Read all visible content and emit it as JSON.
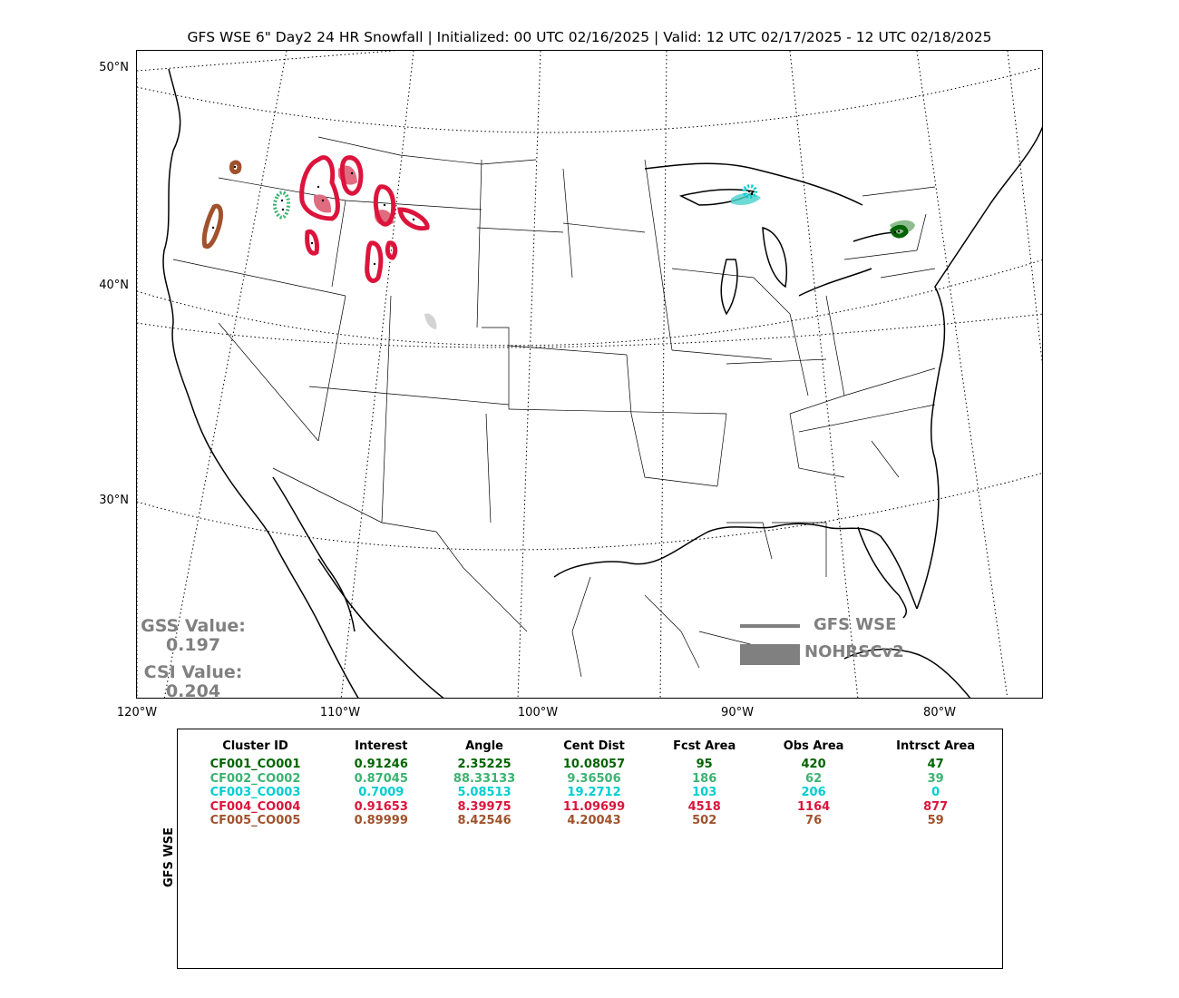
{
  "title": "GFS WSE 6\" Day2 24 HR Snowfall | Initialized: 00 UTC 02/16/2025 | Valid: 12 UTC 02/17/2025 - 12 UTC 02/18/2025",
  "map": {
    "lat_labels": [
      "50°N",
      "40°N",
      "30°N"
    ],
    "lon_labels": [
      "120°W",
      "110°W",
      "100°W",
      "90°W",
      "80°W"
    ]
  },
  "scores": {
    "gss_label": "GSS Value:",
    "gss_value": "0.197",
    "csi_label": "CSI Value:",
    "csi_value": "0.204"
  },
  "legend": {
    "forecast_label": "GFS WSE",
    "observed_label": "NOHRSCv2",
    "color": "#808080"
  },
  "table": {
    "side_label": "GFS WSE",
    "headers": [
      "Cluster ID",
      "Interest",
      "Angle",
      "Cent Dist",
      "Fcst Area",
      "Obs Area",
      "Intrsct Area"
    ],
    "rows": [
      {
        "color": "#006400",
        "cells": [
          "CF001_CO001",
          "0.91246",
          "2.35225",
          "10.08057",
          "95",
          "420",
          "47"
        ]
      },
      {
        "color": "#3cb371",
        "cells": [
          "CF002_CO002",
          "0.87045",
          "88.33133",
          "9.36506",
          "186",
          "62",
          "39"
        ]
      },
      {
        "color": "#00ced1",
        "cells": [
          "CF003_CO003",
          "0.7009",
          "5.08513",
          "19.2712",
          "103",
          "206",
          "0"
        ]
      },
      {
        "color": "#dc143c",
        "cells": [
          "CF004_CO004",
          "0.91653",
          "8.39975",
          "11.09699",
          "4518",
          "1164",
          "877"
        ]
      },
      {
        "color": "#a0522d",
        "cells": [
          "CF005_CO005",
          "0.89999",
          "8.42546",
          "4.20043",
          "502",
          "76",
          "59"
        ]
      }
    ]
  },
  "cluster_colors": {
    "CF001": "#006400",
    "CF002": "#3cb371",
    "CF003": "#00ced1",
    "CF004": "#dc143c",
    "CF005": "#a0522d"
  }
}
